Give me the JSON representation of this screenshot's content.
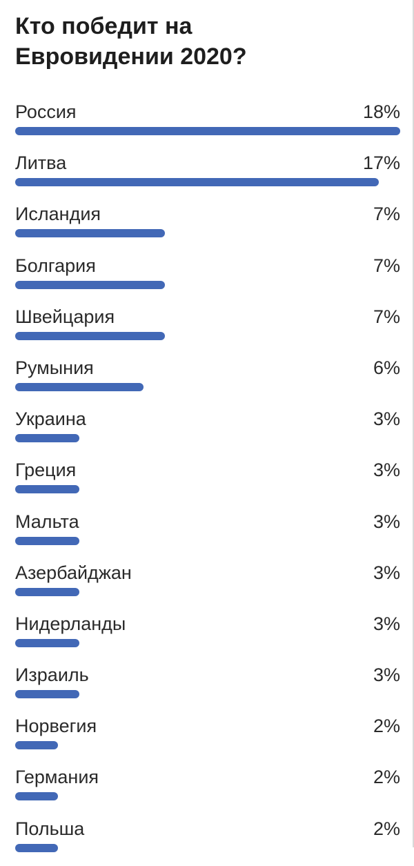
{
  "poll": {
    "title_line1": "Кто победит на",
    "title_line2": "Евровидении 2020?",
    "bar_color": "#4268b6",
    "options": [
      {
        "label": "Россия",
        "percent": "18%",
        "share": 18
      },
      {
        "label": "Литва",
        "percent": "17%",
        "share": 17
      },
      {
        "label": "Исландия",
        "percent": "7%",
        "share": 7
      },
      {
        "label": "Болгария",
        "percent": "7%",
        "share": 7
      },
      {
        "label": "Швейцария",
        "percent": "7%",
        "share": 7
      },
      {
        "label": "Румыния",
        "percent": "6%",
        "share": 6
      },
      {
        "label": "Украина",
        "percent": "3%",
        "share": 3
      },
      {
        "label": "Греция",
        "percent": "3%",
        "share": 3
      },
      {
        "label": "Мальта",
        "percent": "3%",
        "share": 3
      },
      {
        "label": "Азербайджан",
        "percent": "3%",
        "share": 3
      },
      {
        "label": "Нидерланды",
        "percent": "3%",
        "share": 3
      },
      {
        "label": "Израиль",
        "percent": "3%",
        "share": 3
      },
      {
        "label": "Норвегия",
        "percent": "2%",
        "share": 2
      },
      {
        "label": "Германия",
        "percent": "2%",
        "share": 2
      },
      {
        "label": "Польша",
        "percent": "2%",
        "share": 2
      }
    ]
  }
}
